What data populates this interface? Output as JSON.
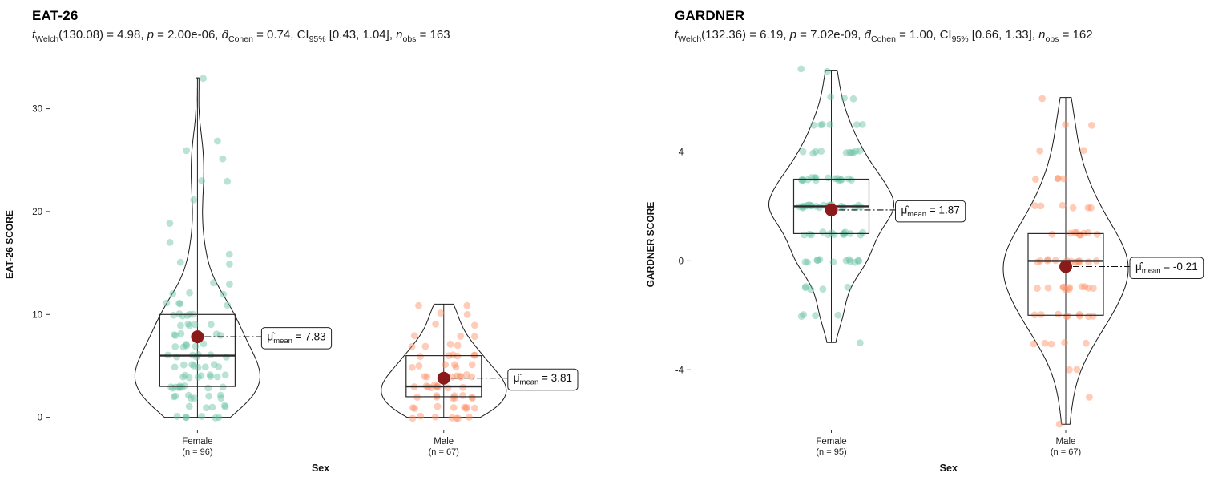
{
  "style": {
    "background": "#ffffff",
    "mean_color": "#8B1A1A",
    "violin_stroke": "#1a1a1a",
    "box_stroke": "#2b2b2b",
    "point_opacity": 0.45,
    "label_border": "#222222"
  },
  "chart_data": [
    {
      "type": "violin",
      "title": "EAT-26",
      "subtitle_segments": [
        {
          "t": "t",
          "i": true
        },
        {
          "t": "Welch",
          "sub": true
        },
        {
          "t": "(130.08) = 4.98, "
        },
        {
          "t": "p",
          "i": true
        },
        {
          "t": " = 2.00e-06, "
        },
        {
          "t": "d̂",
          "i": true
        },
        {
          "t": "Cohen",
          "sub": true
        },
        {
          "t": " = 0.74, CI"
        },
        {
          "t": "95%",
          "sub": true
        },
        {
          "t": " [0.43, 1.04], "
        },
        {
          "t": "n",
          "i": true
        },
        {
          "t": "obs",
          "sub": true
        },
        {
          "t": " = 163"
        }
      ],
      "xlabel": "Sex",
      "ylabel": "EAT-26 SCORE",
      "yticks": [
        0,
        10,
        20,
        30
      ],
      "ylim": [
        -1.2,
        34.8
      ],
      "categories": [
        "Female",
        "Male"
      ],
      "groups": [
        {
          "label": "Female",
          "n_label": "(n = 96)",
          "color": "#66C2A5",
          "mean": 7.83,
          "mean_label_segments": [
            {
              "t": "μ̂"
            },
            {
              "t": "mean",
              "sub": true
            },
            {
              "t": " = 7.83"
            }
          ],
          "values": [
            0,
            0,
            0,
            0,
            0,
            0,
            1,
            1,
            1,
            1,
            1,
            2,
            2,
            2,
            2,
            2,
            2,
            2,
            2,
            3,
            3,
            3,
            3,
            3,
            3,
            3,
            3,
            3,
            3,
            4,
            4,
            4,
            4,
            4,
            4,
            4,
            4,
            4,
            5,
            5,
            5,
            5,
            5,
            5,
            5,
            5,
            6,
            6,
            6,
            6,
            6,
            6,
            6,
            7,
            7,
            7,
            7,
            7,
            7,
            8,
            8,
            8,
            8,
            8,
            9,
            9,
            9,
            9,
            9,
            10,
            10,
            10,
            10,
            10,
            10,
            11,
            11,
            11,
            11,
            12,
            12,
            12,
            13,
            13,
            15,
            15,
            16,
            17,
            19,
            21,
            23,
            23,
            25,
            26,
            27,
            33
          ]
        },
        {
          "label": "Male",
          "n_label": "(n = 67)",
          "color": "#FC8D62",
          "mean": 3.81,
          "mean_label_segments": [
            {
              "t": "μ̂"
            },
            {
              "t": "mean",
              "sub": true
            },
            {
              "t": " = 3.81"
            }
          ],
          "values": [
            0,
            0,
            0,
            0,
            0,
            0,
            0,
            1,
            1,
            1,
            1,
            1,
            1,
            1,
            1,
            2,
            2,
            2,
            2,
            2,
            2,
            2,
            2,
            2,
            3,
            3,
            3,
            3,
            3,
            3,
            3,
            3,
            3,
            3,
            4,
            4,
            4,
            4,
            4,
            4,
            4,
            4,
            5,
            5,
            5,
            5,
            5,
            5,
            6,
            6,
            6,
            6,
            6,
            6,
            7,
            7,
            7,
            7,
            8,
            8,
            8,
            9,
            9,
            10,
            10,
            11,
            11
          ]
        }
      ]
    },
    {
      "type": "violin",
      "title": "GARDNER",
      "subtitle_segments": [
        {
          "t": "t",
          "i": true
        },
        {
          "t": "Welch",
          "sub": true
        },
        {
          "t": "(132.36) = 6.19, "
        },
        {
          "t": "p",
          "i": true
        },
        {
          "t": " = 7.02e-09, "
        },
        {
          "t": "d̂",
          "i": true
        },
        {
          "t": "Cohen",
          "sub": true
        },
        {
          "t": " = 1.00, CI"
        },
        {
          "t": "95%",
          "sub": true
        },
        {
          "t": " [0.66, 1.33], "
        },
        {
          "t": "n",
          "i": true
        },
        {
          "t": "obs",
          "sub": true
        },
        {
          "t": " = 162"
        }
      ],
      "xlabel": "Sex",
      "ylabel": "GARDNER SCORE",
      "yticks": [
        -4,
        0,
        4
      ],
      "ylim": [
        -6.2,
        7.4
      ],
      "categories": [
        "Female",
        "Male"
      ],
      "groups": [
        {
          "label": "Female",
          "n_label": "(n = 95)",
          "color": "#66C2A5",
          "mean": 1.87,
          "mean_label_segments": [
            {
              "t": "μ̂"
            },
            {
              "t": "mean",
              "sub": true
            },
            {
              "t": " = 1.87"
            }
          ],
          "values": [
            -3,
            -2,
            -2,
            -2,
            -2,
            -1,
            -1,
            -1,
            -1,
            -1,
            0,
            0,
            0,
            0,
            0,
            0,
            0,
            0,
            0,
            0,
            0,
            0,
            1,
            1,
            1,
            1,
            1,
            1,
            1,
            1,
            1,
            1,
            1,
            1,
            1,
            1,
            2,
            2,
            2,
            2,
            2,
            2,
            2,
            2,
            2,
            2,
            2,
            2,
            2,
            2,
            2,
            2,
            2,
            2,
            2,
            2,
            2,
            2,
            3,
            3,
            3,
            3,
            3,
            3,
            3,
            3,
            3,
            3,
            3,
            3,
            3,
            3,
            3,
            3,
            4,
            4,
            4,
            4,
            4,
            4,
            4,
            4,
            4,
            4,
            5,
            5,
            5,
            5,
            5,
            5,
            6,
            6,
            6,
            7,
            7
          ]
        },
        {
          "label": "Male",
          "n_label": "(n = 67)",
          "color": "#FC8D62",
          "mean": -0.21,
          "mean_label_segments": [
            {
              "t": "μ̂"
            },
            {
              "t": "mean",
              "sub": true
            },
            {
              "t": " = -0.21"
            }
          ],
          "values": [
            -6,
            -5,
            -4,
            -4,
            -3,
            -3,
            -3,
            -3,
            -3,
            -2,
            -2,
            -2,
            -2,
            -2,
            -2,
            -2,
            -2,
            -2,
            -1,
            -1,
            -1,
            -1,
            -1,
            -1,
            -1,
            -1,
            -1,
            -1,
            -1,
            0,
            0,
            0,
            0,
            0,
            0,
            0,
            0,
            0,
            0,
            0,
            0,
            0,
            0,
            1,
            1,
            1,
            1,
            1,
            1,
            1,
            1,
            1,
            2,
            2,
            2,
            2,
            2,
            2,
            3,
            3,
            3,
            3,
            4,
            4,
            5,
            5,
            6
          ]
        }
      ]
    }
  ]
}
